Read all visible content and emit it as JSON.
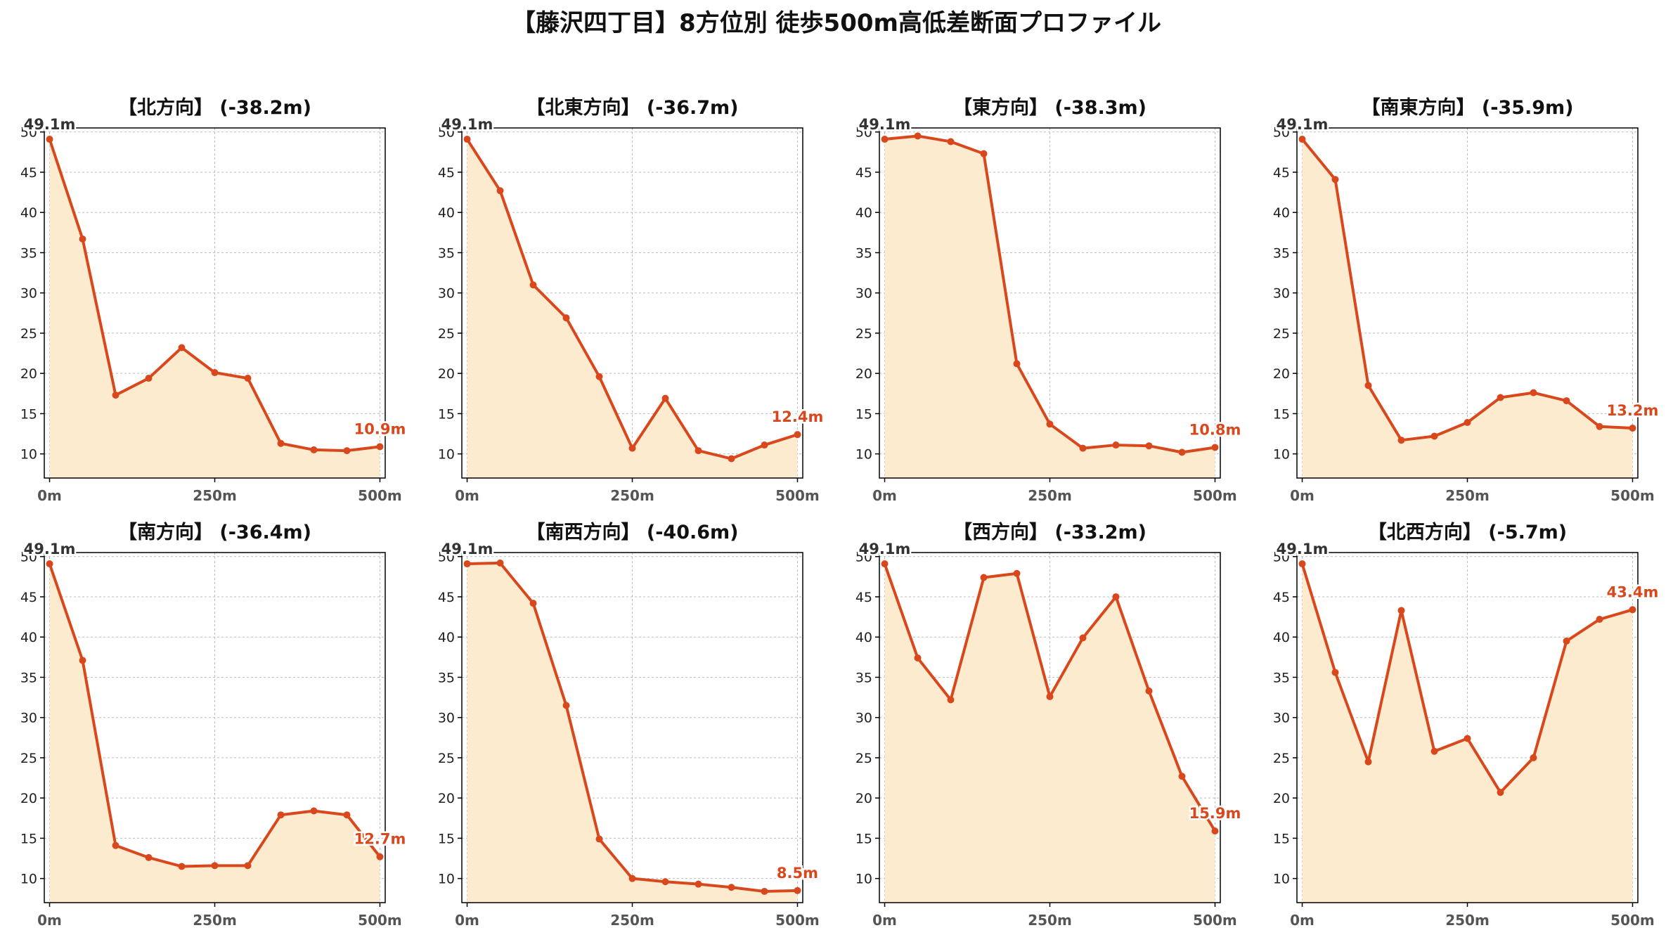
{
  "title": "【藤沢四丁目】8方位別 徒歩500m高低差断面プロファイル",
  "colors": {
    "line": "#D9481C",
    "fill": "#FDEBD0",
    "grid": "#BBBBBB",
    "axis": "#000000"
  },
  "chart_data": [
    {
      "type": "area",
      "title": "【北方向】 (-38.2m)",
      "x": [
        0,
        50,
        100,
        150,
        200,
        250,
        300,
        350,
        400,
        450,
        500
      ],
      "y": [
        49.1,
        36.7,
        17.3,
        19.4,
        23.2,
        20.1,
        19.4,
        11.3,
        10.5,
        10.4,
        10.9
      ],
      "start_label": "49.1m",
      "end_label": "10.9m",
      "xticks": [
        0,
        250,
        500
      ],
      "xtick_labels": [
        "0m",
        "250m",
        "500m"
      ],
      "yticks": [
        10,
        15,
        20,
        25,
        30,
        35,
        40,
        45,
        50
      ],
      "ylim": [
        7,
        50.5
      ],
      "xlim": [
        -8,
        508
      ],
      "grid": true
    },
    {
      "type": "area",
      "title": "【北東方向】 (-36.7m)",
      "x": [
        0,
        50,
        100,
        150,
        200,
        250,
        300,
        350,
        400,
        450,
        500
      ],
      "y": [
        49.1,
        42.7,
        31.0,
        26.9,
        19.6,
        10.7,
        16.9,
        10.4,
        9.4,
        11.1,
        12.4
      ],
      "start_label": "49.1m",
      "end_label": "12.4m",
      "xticks": [
        0,
        250,
        500
      ],
      "xtick_labels": [
        "0m",
        "250m",
        "500m"
      ],
      "yticks": [
        10,
        15,
        20,
        25,
        30,
        35,
        40,
        45,
        50
      ],
      "ylim": [
        7,
        50.5
      ],
      "xlim": [
        -8,
        508
      ],
      "grid": true
    },
    {
      "type": "area",
      "title": "【東方向】 (-38.3m)",
      "x": [
        0,
        50,
        100,
        150,
        200,
        250,
        300,
        350,
        400,
        450,
        500
      ],
      "y": [
        49.1,
        49.5,
        48.8,
        47.3,
        21.2,
        13.7,
        10.7,
        11.1,
        11.0,
        10.2,
        10.8
      ],
      "start_label": "49.1m",
      "end_label": "10.8m",
      "xticks": [
        0,
        250,
        500
      ],
      "xtick_labels": [
        "0m",
        "250m",
        "500m"
      ],
      "yticks": [
        10,
        15,
        20,
        25,
        30,
        35,
        40,
        45,
        50
      ],
      "ylim": [
        7,
        50.5
      ],
      "xlim": [
        -8,
        508
      ],
      "grid": true
    },
    {
      "type": "area",
      "title": "【南東方向】 (-35.9m)",
      "x": [
        0,
        50,
        100,
        150,
        200,
        250,
        300,
        350,
        400,
        450,
        500
      ],
      "y": [
        49.1,
        44.1,
        18.5,
        11.7,
        12.2,
        13.9,
        17.0,
        17.6,
        16.6,
        13.4,
        13.2
      ],
      "start_label": "49.1m",
      "end_label": "13.2m",
      "xticks": [
        0,
        250,
        500
      ],
      "xtick_labels": [
        "0m",
        "250m",
        "500m"
      ],
      "yticks": [
        10,
        15,
        20,
        25,
        30,
        35,
        40,
        45,
        50
      ],
      "ylim": [
        7,
        50.5
      ],
      "xlim": [
        -8,
        508
      ],
      "grid": true
    },
    {
      "type": "area",
      "title": "【南方向】 (-36.4m)",
      "x": [
        0,
        50,
        100,
        150,
        200,
        250,
        300,
        350,
        400,
        450,
        500
      ],
      "y": [
        49.1,
        37.1,
        14.1,
        12.6,
        11.5,
        11.6,
        11.6,
        17.9,
        18.4,
        17.9,
        12.7
      ],
      "start_label": "49.1m",
      "end_label": "12.7m",
      "xticks": [
        0,
        250,
        500
      ],
      "xtick_labels": [
        "0m",
        "250m",
        "500m"
      ],
      "yticks": [
        10,
        15,
        20,
        25,
        30,
        35,
        40,
        45,
        50
      ],
      "ylim": [
        7,
        50.5
      ],
      "xlim": [
        -8,
        508
      ],
      "grid": true
    },
    {
      "type": "area",
      "title": "【南西方向】 (-40.6m)",
      "x": [
        0,
        50,
        100,
        150,
        200,
        250,
        300,
        350,
        400,
        450,
        500
      ],
      "y": [
        49.1,
        49.2,
        44.2,
        31.5,
        14.9,
        10.0,
        9.6,
        9.3,
        8.9,
        8.4,
        8.5
      ],
      "start_label": "49.1m",
      "end_label": "8.5m",
      "xticks": [
        0,
        250,
        500
      ],
      "xtick_labels": [
        "0m",
        "250m",
        "500m"
      ],
      "yticks": [
        10,
        15,
        20,
        25,
        30,
        35,
        40,
        45,
        50
      ],
      "ylim": [
        7,
        50.5
      ],
      "xlim": [
        -8,
        508
      ],
      "grid": true
    },
    {
      "type": "area",
      "title": "【西方向】 (-33.2m)",
      "x": [
        0,
        50,
        100,
        150,
        200,
        250,
        300,
        350,
        400,
        450,
        500
      ],
      "y": [
        49.1,
        37.4,
        32.2,
        47.4,
        47.9,
        32.6,
        39.9,
        45.0,
        33.3,
        22.7,
        15.9
      ],
      "start_label": "49.1m",
      "end_label": "15.9m",
      "xticks": [
        0,
        250,
        500
      ],
      "xtick_labels": [
        "0m",
        "250m",
        "500m"
      ],
      "yticks": [
        10,
        15,
        20,
        25,
        30,
        35,
        40,
        45,
        50
      ],
      "ylim": [
        7,
        50.5
      ],
      "xlim": [
        -8,
        508
      ],
      "grid": true
    },
    {
      "type": "area",
      "title": "【北西方向】 (-5.7m)",
      "x": [
        0,
        50,
        100,
        150,
        200,
        250,
        300,
        350,
        400,
        450,
        500
      ],
      "y": [
        49.1,
        35.6,
        24.5,
        43.3,
        25.8,
        27.4,
        20.7,
        25.0,
        39.5,
        42.2,
        43.4
      ],
      "start_label": "49.1m",
      "end_label": "43.4m",
      "xticks": [
        0,
        250,
        500
      ],
      "xtick_labels": [
        "0m",
        "250m",
        "500m"
      ],
      "yticks": [
        10,
        15,
        20,
        25,
        30,
        35,
        40,
        45,
        50
      ],
      "ylim": [
        7,
        50.5
      ],
      "xlim": [
        -8,
        508
      ],
      "grid": true
    }
  ]
}
